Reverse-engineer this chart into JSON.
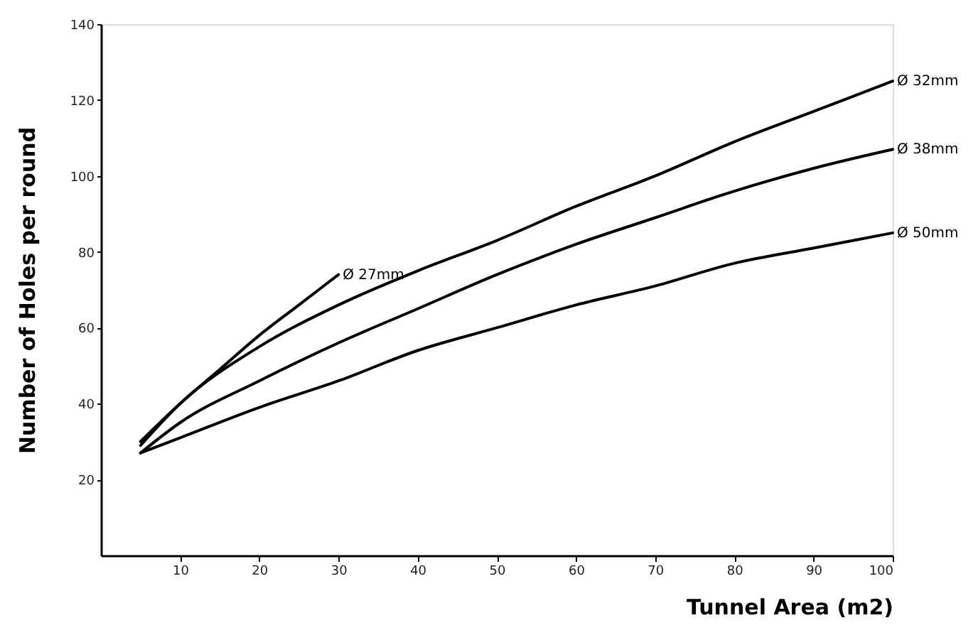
{
  "chart_data": {
    "type": "line",
    "xlabel": "Tunnel Area (m2)",
    "ylabel": "Number of Holes per round",
    "xlim": [
      0,
      100
    ],
    "ylim": [
      0,
      140
    ],
    "xticks": [
      10,
      20,
      30,
      40,
      50,
      60,
      70,
      80,
      90,
      100
    ],
    "yticks": [
      20,
      40,
      60,
      80,
      100,
      120,
      140
    ],
    "grid": false,
    "marker": "none",
    "line_style": "solid",
    "series": [
      {
        "name": "Ø 27mm",
        "color": "#000000",
        "x": [
          5,
          10,
          15,
          20,
          25,
          30
        ],
        "values": [
          30,
          40,
          49,
          58,
          66,
          74
        ]
      },
      {
        "name": "Ø 32mm",
        "color": "#000000",
        "x": [
          5,
          10,
          20,
          30,
          40,
          50,
          60,
          70,
          80,
          90,
          100
        ],
        "values": [
          29,
          40,
          55,
          66,
          75,
          83,
          92,
          100,
          109,
          117,
          125
        ]
      },
      {
        "name": "Ø 38mm",
        "color": "#000000",
        "x": [
          5,
          10,
          20,
          30,
          40,
          50,
          60,
          70,
          80,
          90,
          100
        ],
        "values": [
          27,
          35,
          46,
          56,
          65,
          74,
          82,
          89,
          96,
          102,
          107
        ]
      },
      {
        "name": "Ø 50mm",
        "color": "#000000",
        "x": [
          5,
          10,
          20,
          30,
          40,
          50,
          60,
          70,
          80,
          90,
          100
        ],
        "values": [
          27,
          31,
          39,
          46,
          54,
          60,
          66,
          71,
          77,
          81,
          85
        ]
      }
    ]
  }
}
